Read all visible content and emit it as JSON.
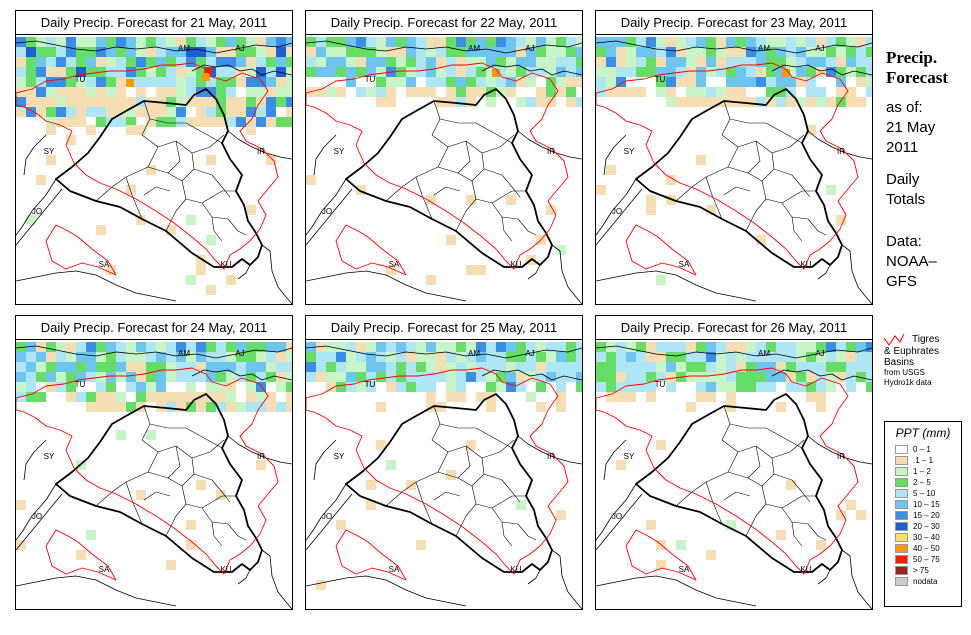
{
  "panels": [
    {
      "title": "Daily Precip. Forecast for  21 May, 2011",
      "rain": "heavy"
    },
    {
      "title": "Daily Precip. Forecast for  22 May, 2011",
      "rain": "medium"
    },
    {
      "title": "Daily Precip. Forecast for  23 May, 2011",
      "rain": "medium"
    },
    {
      "title": "Daily Precip. Forecast for  24 May, 2011",
      "rain": "medium"
    },
    {
      "title": "Daily Precip. Forecast for  25 May, 2011",
      "rain": "light"
    },
    {
      "title": "Daily Precip. Forecast for  26 May, 2011",
      "rain": "light"
    }
  ],
  "country_labels": [
    "AM",
    "AJ",
    "TU",
    "SY",
    "IR",
    "JO",
    "SA",
    "KU"
  ],
  "sidebar": {
    "title1": "Precip.",
    "title2": "Forecast",
    "asof": "as of:",
    "date1": "21 May",
    "date2": "2011",
    "daily1": "Daily",
    "daily2": "Totals",
    "data1": "Data:",
    "data2": "NOAA–",
    "data3": "GFS"
  },
  "basin_legend": {
    "line1": "Tigres",
    "line2": "& Euphrates",
    "line3": "Basins",
    "line4": "from USGS",
    "line5": "Hydro1k data",
    "color": "#ff0000"
  },
  "ppt_legend": {
    "title": "PPT (mm)",
    "items": [
      {
        "label": "0 – 1",
        "color": "#ffffff"
      },
      {
        "label": ".1 – 1",
        "color": "#f5deb3"
      },
      {
        "label": "1 – 2",
        "color": "#c8f5c8"
      },
      {
        "label": "2 – 5",
        "color": "#66dd66"
      },
      {
        "label": "5 – 10",
        "color": "#aee6f5"
      },
      {
        "label": "10 – 15",
        "color": "#6ec6f0"
      },
      {
        "label": "15 – 20",
        "color": "#3b8ee8"
      },
      {
        "label": "20 – 30",
        "color": "#1f5fd6"
      },
      {
        "label": "30 – 40",
        "color": "#ffe066"
      },
      {
        "label": "40 – 50",
        "color": "#ff9900"
      },
      {
        "label": "50 – 75",
        "color": "#ee2200"
      },
      {
        "label": "> 75",
        "color": "#992222"
      },
      {
        "label": "nodata",
        "color": "#cccccc"
      }
    ]
  }
}
